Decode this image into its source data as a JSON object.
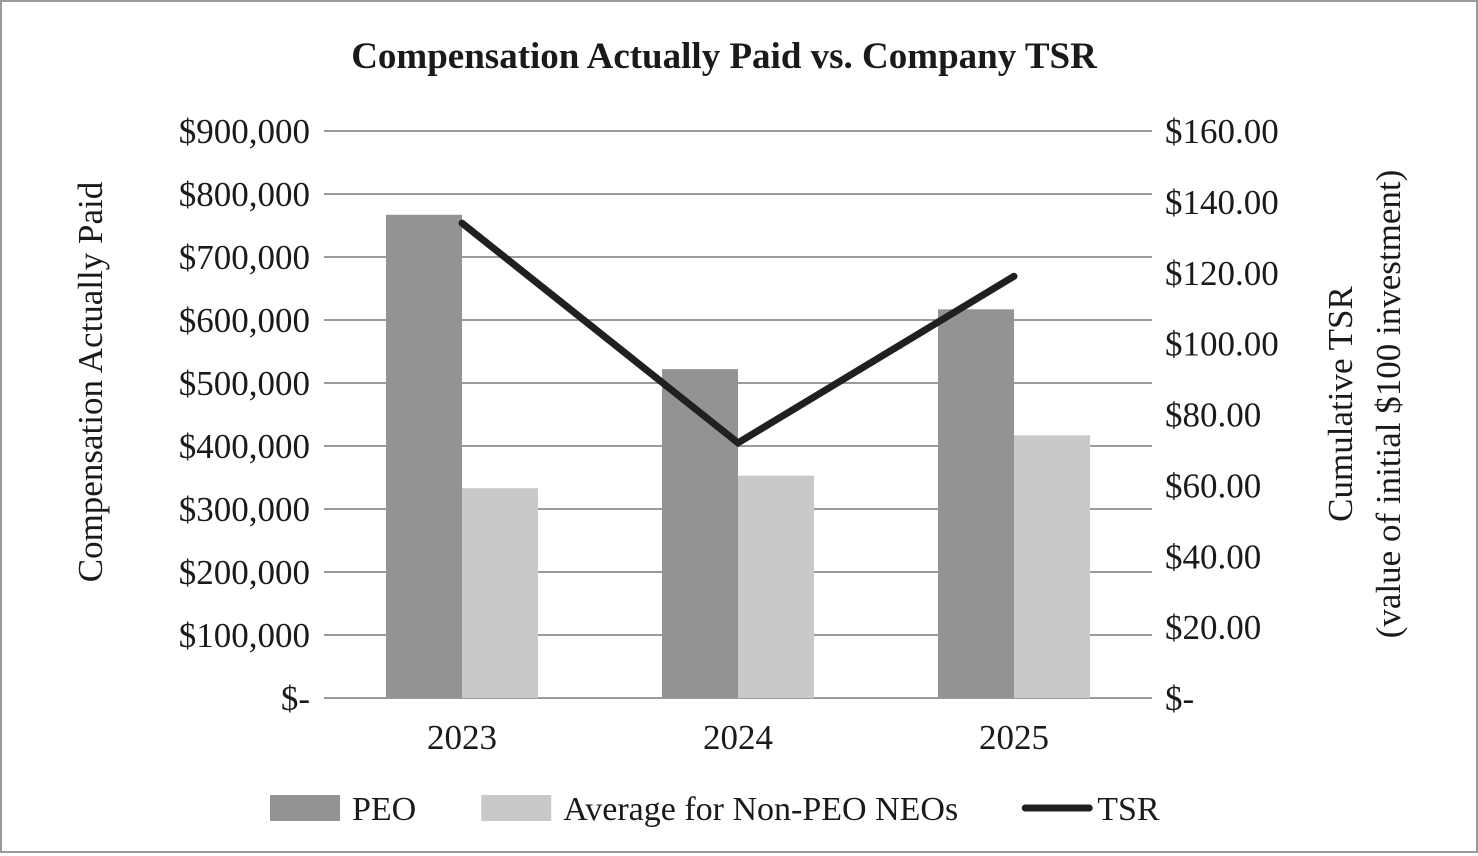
{
  "chart_data": {
    "type": "bar",
    "title": "Compensation Actually Paid vs. Company TSR",
    "categories": [
      "2023",
      "2024",
      "2025"
    ],
    "series": [
      {
        "name": "PEO",
        "kind": "bar",
        "axis": "left",
        "color": "#939393",
        "values": [
          767000,
          522000,
          617000
        ]
      },
      {
        "name": "Average for Non-PEO NEOs",
        "kind": "bar",
        "axis": "left",
        "color": "#c9c9c9",
        "values": [
          333000,
          353000,
          417000
        ]
      },
      {
        "name": "TSR",
        "kind": "line",
        "axis": "right",
        "color": "#231f20",
        "values": [
          134.0,
          72.0,
          119.0
        ]
      }
    ],
    "y_left": {
      "label": "Compensation Actually Paid",
      "ylim": [
        0,
        900000
      ],
      "ticks": [
        0,
        100000,
        200000,
        300000,
        400000,
        500000,
        600000,
        700000,
        800000,
        900000
      ],
      "tick_labels": [
        "$-",
        "$100,000",
        "$200,000",
        "$300,000",
        "$400,000",
        "$500,000",
        "$600,000",
        "$700,000",
        "$800,000",
        "$900,000"
      ]
    },
    "y_right": {
      "label_line1": "Cumulative TSR",
      "label_line2": "(value of initial $100 investment)",
      "ylim": [
        0,
        160
      ],
      "ticks": [
        0,
        20,
        40,
        60,
        80,
        100,
        120,
        140,
        160
      ],
      "tick_labels": [
        "$-",
        "$20.00",
        "$40.00",
        "$60.00",
        "$80.00",
        "$100.00",
        "$120.00",
        "$140.00",
        "$160.00"
      ]
    },
    "grid": true,
    "legend": "bottom"
  }
}
